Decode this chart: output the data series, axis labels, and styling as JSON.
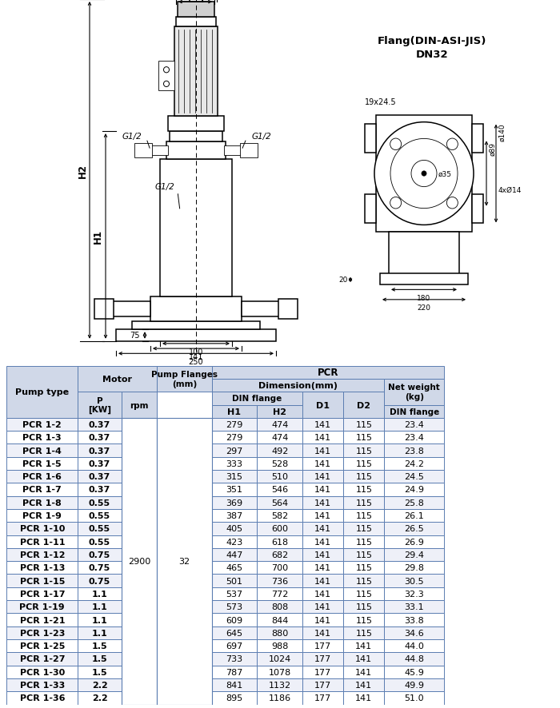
{
  "table_data": [
    [
      "PCR 1-2",
      "0.37",
      "279",
      "474",
      "141",
      "115",
      "23.4"
    ],
    [
      "PCR 1-3",
      "0.37",
      "279",
      "474",
      "141",
      "115",
      "23.4"
    ],
    [
      "PCR 1-4",
      "0.37",
      "297",
      "492",
      "141",
      "115",
      "23.8"
    ],
    [
      "PCR 1-5",
      "0.37",
      "333",
      "528",
      "141",
      "115",
      "24.2"
    ],
    [
      "PCR 1-6",
      "0.37",
      "315",
      "510",
      "141",
      "115",
      "24.5"
    ],
    [
      "PCR 1-7",
      "0.37",
      "351",
      "546",
      "141",
      "115",
      "24.9"
    ],
    [
      "PCR 1-8",
      "0.55",
      "369",
      "564",
      "141",
      "115",
      "25.8"
    ],
    [
      "PCR 1-9",
      "0.55",
      "387",
      "582",
      "141",
      "115",
      "26.1"
    ],
    [
      "PCR 1-10",
      "0.55",
      "405",
      "600",
      "141",
      "115",
      "26.5"
    ],
    [
      "PCR 1-11",
      "0.55",
      "423",
      "618",
      "141",
      "115",
      "26.9"
    ],
    [
      "PCR 1-12",
      "0.75",
      "447",
      "682",
      "141",
      "115",
      "29.4"
    ],
    [
      "PCR 1-13",
      "0.75",
      "465",
      "700",
      "141",
      "115",
      "29.8"
    ],
    [
      "PCR 1-15",
      "0.75",
      "501",
      "736",
      "141",
      "115",
      "30.5"
    ],
    [
      "PCR 1-17",
      "1.1",
      "537",
      "772",
      "141",
      "115",
      "32.3"
    ],
    [
      "PCR 1-19",
      "1.1",
      "573",
      "808",
      "141",
      "115",
      "33.1"
    ],
    [
      "PCR 1-21",
      "1.1",
      "609",
      "844",
      "141",
      "115",
      "33.8"
    ],
    [
      "PCR 1-23",
      "1.1",
      "645",
      "880",
      "141",
      "115",
      "34.6"
    ],
    [
      "PCR 1-25",
      "1.5",
      "697",
      "988",
      "177",
      "141",
      "44.0"
    ],
    [
      "PCR 1-27",
      "1.5",
      "733",
      "1024",
      "177",
      "141",
      "44.8"
    ],
    [
      "PCR 1-30",
      "1.5",
      "787",
      "1078",
      "177",
      "141",
      "45.9"
    ],
    [
      "PCR 1-33",
      "2.2",
      "841",
      "1132",
      "177",
      "141",
      "49.9"
    ],
    [
      "PCR 1-36",
      "2.2",
      "895",
      "1186",
      "177",
      "141",
      "51.0"
    ]
  ],
  "rpm_value": "2900",
  "flange_value": "32",
  "border_color": "#5b7db1",
  "header_bg": "#d0d8e8",
  "row_alt_bg": "#eef0f8",
  "row_bg": "#ffffff",
  "text_color": "#000000",
  "figure_bg": "#ffffff"
}
